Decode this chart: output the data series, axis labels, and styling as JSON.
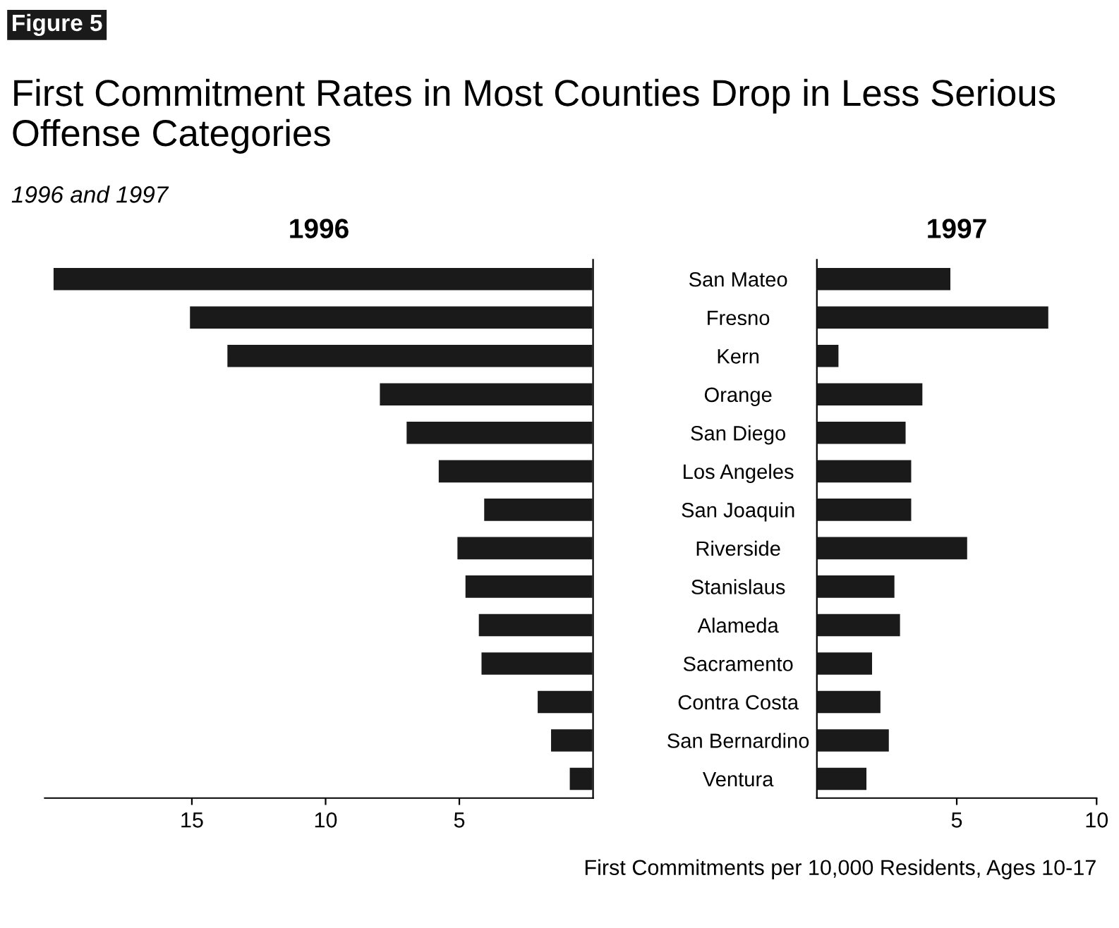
{
  "chart_data": [
    {
      "type": "bar",
      "orientation": "horizontal",
      "title": "First Commitment Rates in Most Counties Drop in Less Serious Offense Categories",
      "subtitle": "1996 and 1997",
      "annotations": [
        "Figure 5",
        "1996"
      ],
      "categories": [
        "San Mateo",
        "Fresno",
        "Kern",
        "Orange",
        "San Diego",
        "Los Angeles",
        "San Joaquin",
        "Riverside",
        "Stanislaus",
        "Alameda",
        "Sacramento",
        "Contra Costa",
        "San Bernardino",
        "Ventura"
      ],
      "values": [
        20.2,
        15.1,
        13.7,
        8.0,
        7.0,
        5.8,
        4.1,
        5.1,
        4.8,
        4.3,
        4.2,
        2.1,
        1.6,
        0.9
      ],
      "color": "#1a1a1a",
      "xlim": [
        20.5,
        0
      ],
      "xticks": [
        15,
        10,
        5
      ],
      "grid": false,
      "legend": false
    },
    {
      "type": "bar",
      "orientation": "horizontal",
      "annotations": [
        "1997"
      ],
      "xlabel": "First Commitments per 10,000 Residents, Ages 10-17",
      "values": [
        4.8,
        8.3,
        0.8,
        3.8,
        3.2,
        3.4,
        3.4,
        5.4,
        2.8,
        3.0,
        2.0,
        2.3,
        2.6,
        1.8
      ],
      "color": "#1a1a1a",
      "xlim": [
        0,
        10
      ],
      "xticks": [
        5,
        10
      ],
      "tick_labels": "x",
      "grid": false,
      "legend": false
    }
  ]
}
